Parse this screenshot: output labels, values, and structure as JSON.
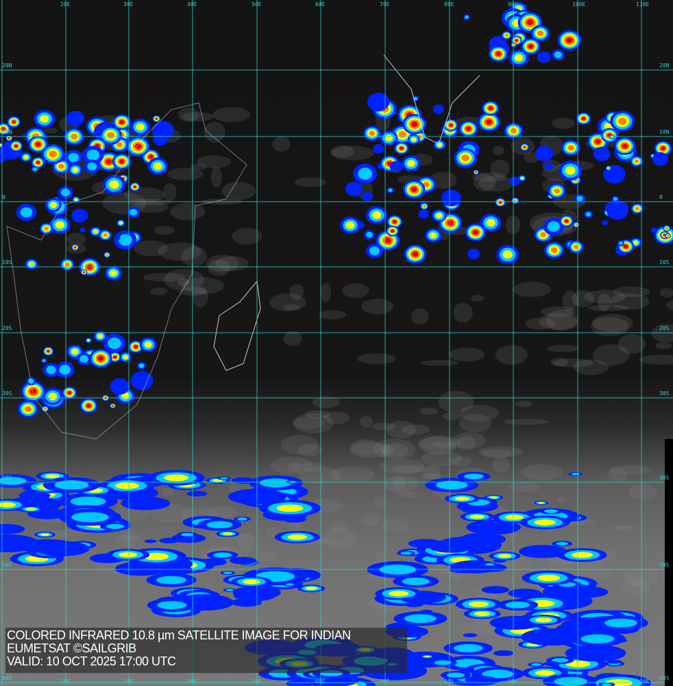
{
  "title": "COLORED INFRARED 10.8 µm SATELLITE IMAGE FOR INDIAN",
  "credit": "EUMETSAT ©SAILGRIB",
  "valid": "VALID:  10 OCT 2025 17:00 UTC",
  "grid_color": "#2fd0d0",
  "longitude_labels": [
    "20E",
    "30E",
    "40E",
    "50E",
    "60E",
    "70E",
    "80E",
    "90E",
    "100E",
    "110E"
  ],
  "latitude_labels": [
    "20N",
    "10N",
    "0",
    "10S",
    "20S",
    "30S",
    "40S",
    "50S",
    "60S"
  ],
  "color_scale": [
    "#0022ff",
    "#00c8ff",
    "#ffff00",
    "#ff8000",
    "#e00000"
  ]
}
